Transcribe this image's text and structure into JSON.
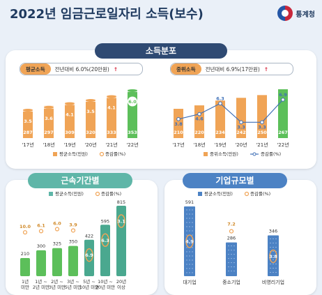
{
  "title": "2022년 임금근로일자리 소득(보수)",
  "brand": "통계청",
  "colors": {
    "orange": "#f0a456",
    "green": "#5cbf5a",
    "teal": "#5fb6a8",
    "blue": "#4c82c4",
    "navy": "#2f4a73",
    "accent": "#3f6fb6"
  },
  "section1": {
    "label": "소득분포",
    "left": {
      "key": "평균소득",
      "note": "전년대비 6.0%(20만원)",
      "arrow": "↑"
    },
    "right": {
      "key": "중위소득",
      "note": "전년대비 6.9%(17만원)",
      "arrow": "↑"
    }
  },
  "section2": {
    "label": "근속기간별"
  },
  "section3": {
    "label": "기업규모별"
  },
  "chart_data": [
    {
      "type": "bar",
      "categories": [
        "'17년",
        "'18년",
        "'19년",
        "'20년",
        "'21년",
        "'22년"
      ],
      "series": [
        {
          "name": "평균소득(만원)",
          "values": [
            287,
            297,
            309,
            320,
            333,
            353
          ]
        },
        {
          "name": "증감률(%)",
          "values": [
            3.5,
            3.6,
            4.1,
            3.5,
            4.1,
            6.0
          ]
        }
      ]
    },
    {
      "type": "bar",
      "categories": [
        "'17년",
        "'18년",
        "'19년",
        "'20년",
        "'21년",
        "'22년"
      ],
      "series": [
        {
          "name": "중위소득(만원)",
          "values": [
            210,
            220,
            234,
            242,
            250,
            267
          ]
        },
        {
          "name": "증감률(%)",
          "values": [
            3.8,
            4.6,
            6.3,
            3.3,
            3.3,
            6.9
          ]
        }
      ]
    },
    {
      "type": "bar",
      "categories": [
        "1년 미만",
        "1년 ~ 2년 미만",
        "2년 ~ 3년 미만",
        "3년 ~ 5년 미만",
        "5년 ~ 10년 미만",
        "10년 ~ 20년 미만",
        "20년 이상"
      ],
      "series": [
        {
          "name": "평균소득(만원)",
          "values": [
            210,
            300,
            325,
            350,
            422,
            595,
            815
          ]
        },
        {
          "name": "증감률(%)",
          "values": [
            10.0,
            6.1,
            6.0,
            3.9,
            6.9,
            6.3,
            3.1
          ]
        }
      ]
    },
    {
      "type": "bar",
      "categories": [
        "대기업",
        "중소기업",
        "비영리기업"
      ],
      "series": [
        {
          "name": "평균소득(만원)",
          "values": [
            591,
            286,
            346
          ]
        },
        {
          "name": "증감률(%)",
          "values": [
            4.9,
            7.2,
            3.8
          ]
        }
      ]
    }
  ]
}
